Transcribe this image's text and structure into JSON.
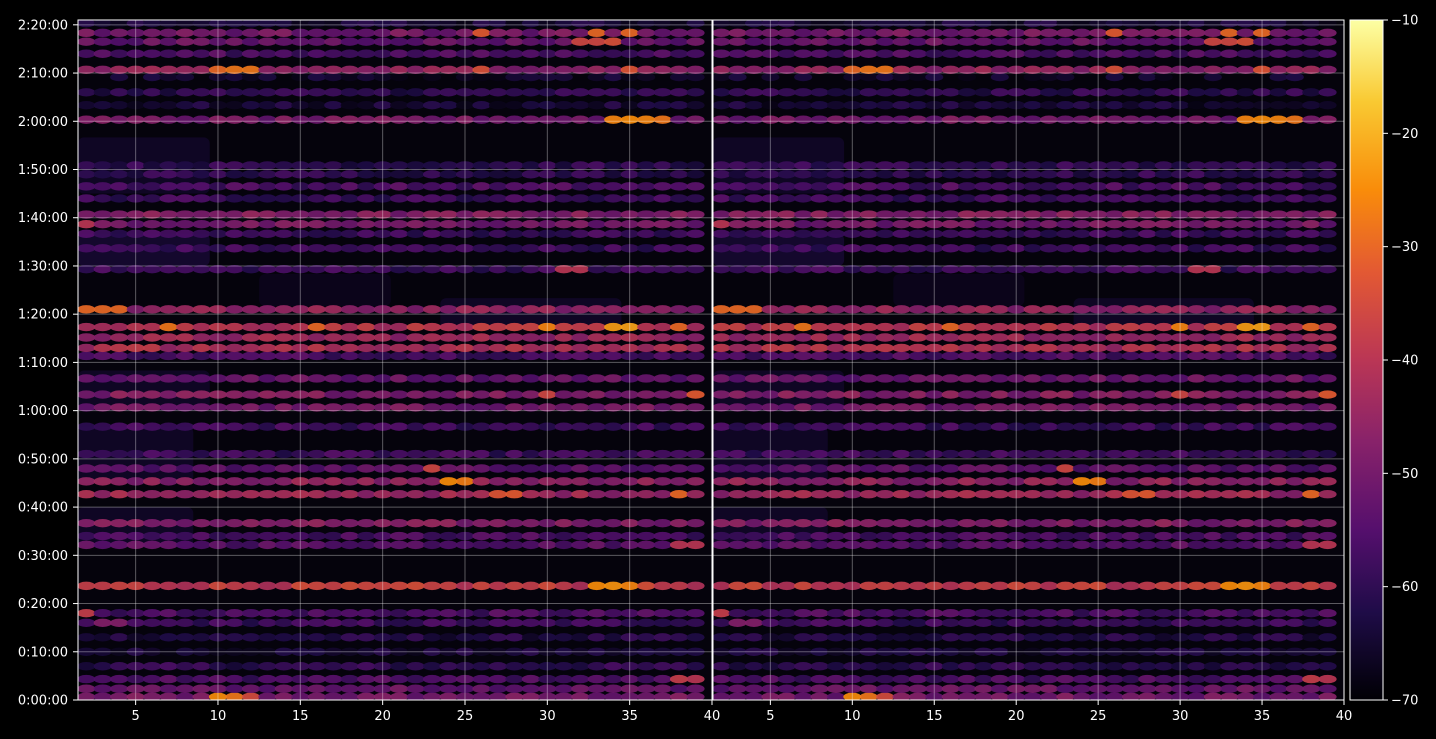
{
  "chart_data": {
    "type": "heatmap",
    "title": "",
    "xlabel": "",
    "ylabel": "",
    "background_color": "#000000",
    "axis_color": "#ffffff",
    "grid": true,
    "colormap": "inferno",
    "panels": [
      {
        "name": "left",
        "xlim": [
          1.5,
          40
        ],
        "xticks": [
          5,
          10,
          15,
          20,
          25,
          30,
          35,
          40
        ]
      },
      {
        "name": "right",
        "xlim": [
          1.5,
          40
        ],
        "xticks": [
          5,
          10,
          15,
          20,
          25,
          30,
          35,
          40
        ]
      }
    ],
    "y_axis": {
      "unit": "seconds",
      "ylim": [
        0,
        8460
      ],
      "ticks": [
        0,
        600,
        1200,
        1800,
        2400,
        3000,
        3600,
        4200,
        4800,
        5400,
        6000,
        6600,
        7200,
        7800,
        8400
      ],
      "tick_labels": [
        "0:00:00",
        "0:10:00",
        "0:20:00",
        "0:30:00",
        "0:40:00",
        "0:50:00",
        "1:00:00",
        "1:10:00",
        "1:20:00",
        "1:30:00",
        "1:40:00",
        "1:50:00",
        "2:00:00",
        "2:10:00",
        "2:20:00"
      ]
    },
    "colorbar": {
      "range": [
        -70,
        -10
      ],
      "ticks": [
        -70,
        -60,
        -50,
        -40,
        -30,
        -20,
        -10
      ],
      "tick_labels": [
        "−70",
        "−60",
        "−50",
        "−40",
        "−30",
        "−20",
        "−10"
      ],
      "placement": "right"
    },
    "x_bins": [
      2,
      3,
      4,
      5,
      6,
      7,
      8,
      9,
      10,
      11,
      12,
      13,
      14,
      15,
      16,
      17,
      18,
      19,
      20,
      21,
      22,
      23,
      24,
      25,
      26,
      27,
      28,
      29,
      30,
      31,
      32,
      33,
      34,
      35,
      36,
      37,
      38,
      39
    ],
    "bands": [
      {
        "t": 40,
        "base": -50,
        "hot": [
          [
            10,
            -25
          ],
          [
            11,
            -28
          ],
          [
            12,
            -35
          ]
        ]
      },
      {
        "t": 140,
        "base": -52,
        "hot": []
      },
      {
        "t": 260,
        "base": -56,
        "hot": [
          [
            38,
            -38
          ],
          [
            39,
            -40
          ]
        ]
      },
      {
        "t": 420,
        "base": -60,
        "hot": []
      },
      {
        "t": 600,
        "base": -64,
        "hot": []
      },
      {
        "t": 780,
        "base": -62,
        "hot": []
      },
      {
        "t": 960,
        "base": -58,
        "hot": [
          [
            3,
            -48
          ],
          [
            4,
            -48
          ]
        ]
      },
      {
        "t": 1080,
        "base": -56,
        "hot": [
          [
            2,
            -38
          ]
        ]
      },
      {
        "t": 1420,
        "base": -38,
        "hot": [
          [
            33,
            -25
          ],
          [
            34,
            -24
          ],
          [
            35,
            -26
          ]
        ]
      },
      {
        "t": 1930,
        "base": -54,
        "hot": [
          [
            38,
            -40
          ],
          [
            39,
            -40
          ]
        ]
      },
      {
        "t": 2040,
        "base": -56,
        "hot": []
      },
      {
        "t": 2200,
        "base": -48,
        "hot": []
      },
      {
        "t": 2560,
        "base": -44,
        "hot": [
          [
            27,
            -33
          ],
          [
            28,
            -32
          ],
          [
            38,
            -30
          ]
        ]
      },
      {
        "t": 2720,
        "base": -46,
        "hot": [
          [
            24,
            -25
          ],
          [
            25,
            -27
          ]
        ]
      },
      {
        "t": 2880,
        "base": -54,
        "hot": [
          [
            23,
            -36
          ]
        ]
      },
      {
        "t": 3060,
        "base": -58,
        "hot": []
      },
      {
        "t": 3400,
        "base": -58,
        "hot": []
      },
      {
        "t": 3640,
        "base": -50,
        "hot": []
      },
      {
        "t": 3800,
        "base": -48,
        "hot": [
          [
            30,
            -36
          ],
          [
            39,
            -32
          ]
        ]
      },
      {
        "t": 4000,
        "base": -52,
        "hot": []
      },
      {
        "t": 4280,
        "base": -56,
        "hot": []
      },
      {
        "t": 4380,
        "base": -42,
        "hot": [
          [
            5,
            -38
          ],
          [
            6,
            -38
          ]
        ]
      },
      {
        "t": 4510,
        "base": -44,
        "hot": []
      },
      {
        "t": 4640,
        "base": -40,
        "hot": [
          [
            7,
            -28
          ],
          [
            16,
            -30
          ],
          [
            30,
            -26
          ],
          [
            34,
            -23
          ],
          [
            35,
            -22
          ],
          [
            38,
            -30
          ]
        ]
      },
      {
        "t": 4860,
        "base": -46,
        "hot": [
          [
            2,
            -30
          ],
          [
            3,
            -30
          ],
          [
            4,
            -30
          ]
        ]
      },
      {
        "t": 5360,
        "base": -58,
        "hot": [
          [
            31,
            -40
          ],
          [
            32,
            -40
          ]
        ]
      },
      {
        "t": 5620,
        "base": -58,
        "hot": []
      },
      {
        "t": 5800,
        "base": -58,
        "hot": []
      },
      {
        "t": 5920,
        "base": -50,
        "hot": [
          [
            2,
            -40
          ]
        ]
      },
      {
        "t": 6040,
        "base": -48,
        "hot": []
      },
      {
        "t": 6240,
        "base": -58,
        "hot": []
      },
      {
        "t": 6390,
        "base": -56,
        "hot": []
      },
      {
        "t": 6540,
        "base": -60,
        "hot": []
      },
      {
        "t": 6650,
        "base": -60,
        "hot": []
      },
      {
        "t": 7220,
        "base": -50,
        "hot": [
          [
            34,
            -26
          ],
          [
            35,
            -25
          ],
          [
            36,
            -26
          ],
          [
            37,
            -28
          ]
        ]
      },
      {
        "t": 7400,
        "base": -64,
        "hot": []
      },
      {
        "t": 7560,
        "base": -60,
        "hot": []
      },
      {
        "t": 7750,
        "base": -66,
        "hot": []
      },
      {
        "t": 7840,
        "base": -46,
        "hot": [
          [
            10,
            -30
          ],
          [
            11,
            -28
          ],
          [
            12,
            -28
          ],
          [
            26,
            -34
          ],
          [
            35,
            -33
          ]
        ]
      },
      {
        "t": 8040,
        "base": -56,
        "hot": []
      },
      {
        "t": 8190,
        "base": -52,
        "hot": [
          [
            32,
            -36
          ],
          [
            33,
            -36
          ],
          [
            34,
            -34
          ]
        ]
      },
      {
        "t": 8300,
        "base": -50,
        "hot": [
          [
            26,
            -32
          ],
          [
            33,
            -30
          ],
          [
            35,
            -30
          ]
        ]
      },
      {
        "t": 8420,
        "base": -64,
        "hot": []
      }
    ],
    "ghost_blocks": [
      {
        "x0": 2,
        "x1": 9,
        "t0": 6300,
        "t1": 7000,
        "value": -64
      },
      {
        "x0": 2,
        "x1": 9,
        "t0": 5400,
        "t1": 5800,
        "value": -62
      },
      {
        "x0": 2,
        "x1": 8,
        "t0": 2700,
        "t1": 3400,
        "value": -64
      },
      {
        "x0": 2,
        "x1": 9,
        "t0": 3600,
        "t1": 4100,
        "value": -64
      },
      {
        "x0": 13,
        "x1": 20,
        "t0": 4900,
        "t1": 5300,
        "value": -66
      },
      {
        "x0": 24,
        "x1": 34,
        "t0": 4600,
        "t1": 5000,
        "value": -64
      },
      {
        "x0": 2,
        "x1": 8,
        "t0": 1900,
        "t1": 2400,
        "value": -64
      }
    ]
  }
}
